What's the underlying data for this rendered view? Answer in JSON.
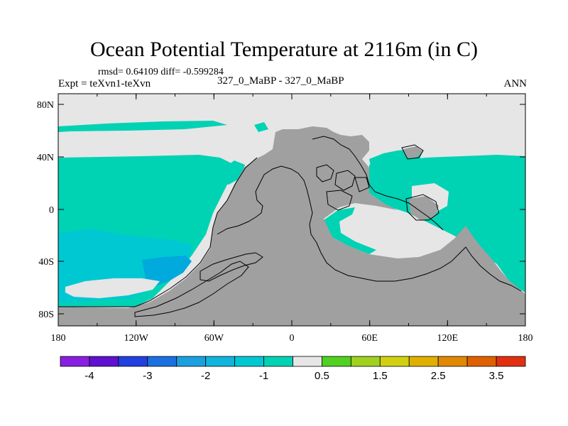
{
  "title": "Ocean Potential Temperature at 2116m (in C)",
  "stats": "rmsd= 0.64109 diff= -0.599284",
  "left_label": "Expt = teXvn1-teXvn",
  "center_label": "327_0_MaBP - 327_0_MaBP",
  "right_label": "ANN",
  "map": {
    "lat_ticks": [
      "80N",
      "40N",
      "0",
      "40S",
      "80S"
    ],
    "lon_ticks": [
      "180",
      "120W",
      "60W",
      "0",
      "60E",
      "120E",
      "180"
    ],
    "colors": {
      "land": "#a0a0a0",
      "neutral": "#e6e6e6",
      "cyan_light": "#00d2b4",
      "cyan": "#00c8d2",
      "blue_light": "#00aadc"
    }
  },
  "colorbar": {
    "labels": [
      "-4",
      "-3",
      "-2",
      "-1",
      "0.5",
      "1.5",
      "2.5",
      "3.5"
    ],
    "colors": [
      "#8a1ee0",
      "#6010d0",
      "#2040e0",
      "#1a70e0",
      "#1aa0e0",
      "#10b4dc",
      "#00c8d2",
      "#00d2b4",
      "#e6e6e6",
      "#50d020",
      "#a0d020",
      "#d0d010",
      "#e0b000",
      "#e08800",
      "#e06000",
      "#e03010"
    ]
  }
}
